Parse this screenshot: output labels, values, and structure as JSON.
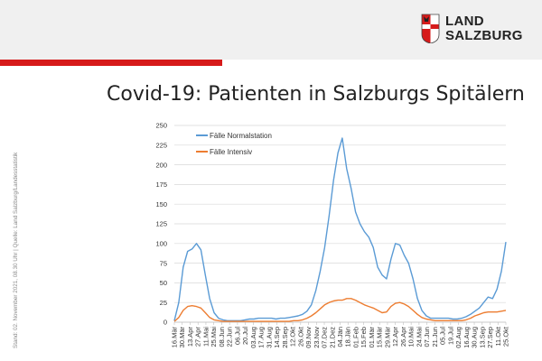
{
  "header": {
    "logo_line1": "LAND",
    "logo_line2": "SALZBURG",
    "title": "Covid-19: Patienten in Salzburgs Spitälern",
    "side_note": "Stand: 02. November 2021, 08.30 Uhr | Quelle: Land Salzburg/Landesstatistik"
  },
  "colors": {
    "accent": "#d61a1a",
    "normal": "#5b9bd5",
    "intensiv": "#ed7d31"
  },
  "chart_data": {
    "type": "line",
    "title": "",
    "xlabel": "",
    "ylabel": "",
    "ylim": [
      0,
      250
    ],
    "yticks": [
      0,
      25,
      50,
      75,
      100,
      125,
      150,
      175,
      200,
      225,
      250
    ],
    "grid": true,
    "legend_position": "top-left",
    "x_ticks": [
      "16.Mär",
      "30.Mär",
      "13.Apr",
      "27.Apr",
      "11.Mai",
      "25.Mai",
      "08.Jun",
      "22.Jun",
      "06.Jul",
      "20.Jul",
      "03.Aug",
      "17.Aug",
      "31.Aug",
      "14.Sep",
      "28.Sep",
      "12.Okt",
      "26.Okt",
      "09.Nov",
      "23.Nov",
      "07.Dez",
      "21.Dez",
      "04.Jän",
      "18.Jän",
      "01.Feb",
      "15.Feb",
      "01.Mär",
      "15.Mär",
      "29.Mär",
      "12.Apr",
      "26.Apr",
      "10.Mai",
      "24.Mai",
      "07.Jun",
      "21.Jun",
      "05.Jul",
      "19.Jul",
      "02.Aug",
      "16.Aug",
      "30.Aug",
      "13.Sep",
      "27.Sep",
      "11.Okt",
      "25.Okt"
    ],
    "series": [
      {
        "name": "Fälle Normalstation",
        "values": [
          2,
          25,
          70,
          90,
          93,
          100,
          92,
          60,
          30,
          12,
          5,
          3,
          2,
          2,
          2,
          2,
          3,
          4,
          4,
          5,
          5,
          5,
          5,
          4,
          5,
          5,
          6,
          7,
          8,
          10,
          14,
          22,
          40,
          65,
          95,
          135,
          180,
          215,
          234,
          195,
          170,
          140,
          125,
          115,
          108,
          95,
          70,
          60,
          55,
          80,
          100,
          98,
          85,
          75,
          55,
          30,
          15,
          8,
          5,
          5,
          5,
          5,
          5,
          4,
          4,
          5,
          7,
          10,
          14,
          18,
          25,
          32,
          30,
          42,
          65,
          102
        ],
        "color": "#5b9bd5"
      },
      {
        "name": "Fälle Intensiv",
        "values": [
          1,
          6,
          15,
          20,
          21,
          20,
          18,
          12,
          6,
          3,
          2,
          1,
          1,
          1,
          1,
          1,
          1,
          1,
          1,
          1,
          1,
          1,
          1,
          1,
          1,
          1,
          1,
          2,
          2,
          3,
          5,
          8,
          12,
          17,
          22,
          25,
          27,
          28,
          28,
          30,
          30,
          28,
          25,
          22,
          20,
          18,
          15,
          12,
          13,
          20,
          24,
          25,
          23,
          20,
          15,
          10,
          6,
          4,
          3,
          2,
          2,
          2,
          2,
          2,
          2,
          2,
          3,
          5,
          8,
          10,
          12,
          13,
          13,
          13,
          14,
          15
        ],
        "color": "#ed7d31"
      }
    ]
  }
}
